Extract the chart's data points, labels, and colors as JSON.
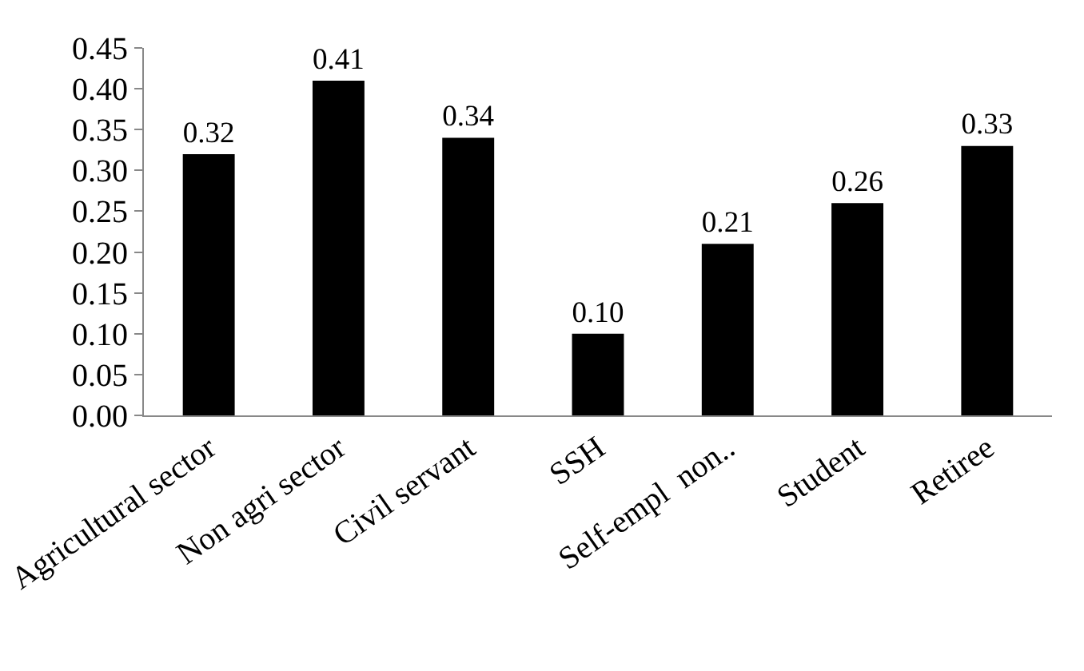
{
  "chart_data": {
    "type": "bar",
    "categories": [
      "Agricultural sector",
      "Non agri sector",
      "Civil servant",
      "SSH",
      "Self-empl  non..",
      "Student",
      "Retiree"
    ],
    "values": [
      0.32,
      0.41,
      0.34,
      0.1,
      0.21,
      0.26,
      0.33
    ],
    "value_labels": [
      "0.32",
      "0.41",
      "0.34",
      "0.10",
      "0.21",
      "0.26",
      "0.33"
    ],
    "color": "#000000",
    "ylim": [
      0,
      0.45
    ],
    "yticks": [
      {
        "value": 0,
        "label": "0.00"
      },
      {
        "value": 0.05,
        "label": "0.05"
      },
      {
        "value": 0.1,
        "label": "0.10"
      },
      {
        "value": 0.15,
        "label": "0.15"
      },
      {
        "value": 0.2,
        "label": "0.20"
      },
      {
        "value": 0.25,
        "label": "0.25"
      },
      {
        "value": 0.3,
        "label": "0.30"
      },
      {
        "value": 0.35,
        "label": "0.35"
      },
      {
        "value": 0.4,
        "label": "0.40"
      },
      {
        "value": 0.45,
        "label": "0.45"
      }
    ],
    "grid": false,
    "legend": false
  }
}
